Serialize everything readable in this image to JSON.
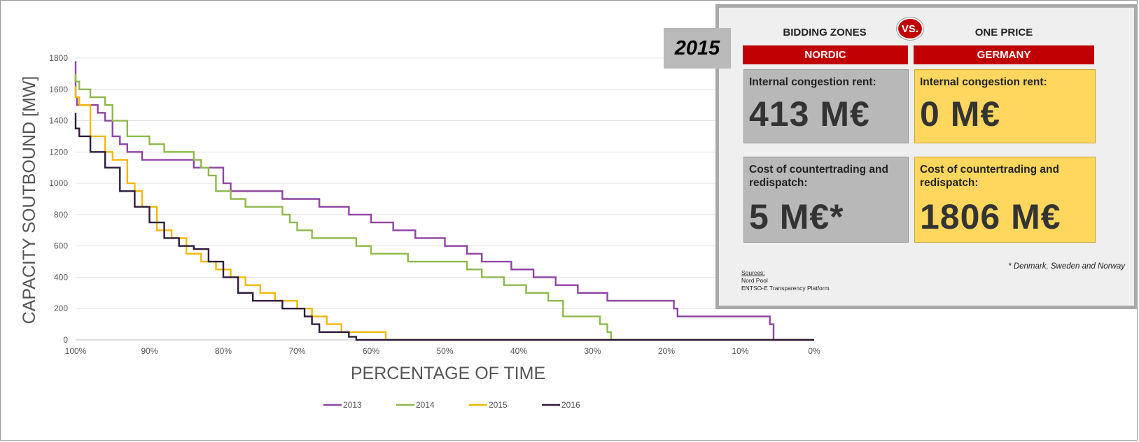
{
  "chart_data": {
    "type": "line",
    "title": "",
    "xlabel": "PERCENTAGE OF TIME",
    "ylabel": "CAPACITY SOUTBOUND [MW]",
    "xlim": [
      100,
      0
    ],
    "ylim": [
      0,
      1800
    ],
    "x_ticks": [
      "100%",
      "90%",
      "80%",
      "70%",
      "60%",
      "50%",
      "40%",
      "30%",
      "20%",
      "10%",
      "0%"
    ],
    "y_ticks": [
      "0",
      "200",
      "400",
      "600",
      "800",
      "1000",
      "1200",
      "1400",
      "1600",
      "1800"
    ],
    "legend_position": "bottom",
    "grid": "horizontal",
    "series": [
      {
        "name": "2013",
        "color": "#8e44a0",
        "x": [
          100,
          100,
          99.8,
          97,
          96,
          95,
          94,
          93,
          91,
          84,
          80,
          79,
          77,
          72,
          70,
          67,
          63,
          60,
          57,
          54,
          50,
          47,
          45,
          41,
          38,
          35,
          32,
          28,
          25,
          19,
          18.5,
          6,
          5.5,
          5.5,
          0
        ],
        "y": [
          1780,
          1550,
          1500,
          1450,
          1400,
          1300,
          1250,
          1200,
          1150,
          1100,
          1000,
          950,
          950,
          900,
          900,
          850,
          800,
          750,
          700,
          650,
          600,
          550,
          500,
          450,
          400,
          350,
          300,
          250,
          250,
          200,
          150,
          100,
          100,
          0,
          0
        ]
      },
      {
        "name": "2014",
        "color": "#8fb84d",
        "x": [
          100,
          100,
          99.5,
          98,
          96,
          95,
          93,
          90,
          88,
          84,
          83,
          82,
          81,
          79,
          77,
          73,
          72,
          71,
          70,
          68,
          65,
          62,
          60,
          55,
          52,
          47,
          45,
          42,
          39,
          36,
          34,
          30,
          29,
          28,
          27.5,
          0
        ],
        "y": [
          1700,
          1650,
          1600,
          1550,
          1500,
          1400,
          1300,
          1250,
          1200,
          1150,
          1100,
          1050,
          950,
          900,
          850,
          850,
          800,
          750,
          700,
          650,
          650,
          600,
          550,
          500,
          500,
          450,
          400,
          350,
          300,
          250,
          150,
          150,
          100,
          50,
          0,
          0
        ]
      },
      {
        "name": "2015",
        "color": "#f2b705",
        "x": [
          100,
          100,
          99.5,
          98,
          96,
          95,
          93,
          92,
          91,
          89,
          87,
          85,
          83,
          81,
          79,
          77,
          75,
          73,
          70,
          68,
          66,
          64,
          62,
          58,
          58,
          0
        ],
        "y": [
          1620,
          1550,
          1500,
          1300,
          1200,
          1150,
          1000,
          950,
          850,
          700,
          650,
          550,
          500,
          450,
          400,
          350,
          300,
          250,
          200,
          150,
          100,
          50,
          50,
          50,
          0,
          0
        ]
      },
      {
        "name": "2016",
        "color": "#2e1b3c",
        "x": [
          100,
          100,
          99.5,
          98,
          96,
          94,
          92,
          90,
          88,
          86,
          84,
          82,
          80,
          78,
          76,
          74,
          72,
          70,
          69,
          68,
          67,
          66,
          64,
          63,
          62,
          61,
          0
        ],
        "y": [
          1450,
          1350,
          1300,
          1200,
          1100,
          950,
          850,
          750,
          650,
          600,
          580,
          500,
          400,
          300,
          250,
          250,
          200,
          200,
          150,
          100,
          50,
          50,
          50,
          20,
          0,
          0,
          0
        ]
      }
    ]
  },
  "panel": {
    "year": "2015",
    "vs": "VS.",
    "left_head": "BIDDING ZONES",
    "right_head": "ONE PRICE",
    "left_region": "NORDIC",
    "right_region": "GERMANY",
    "left_rent_label": "Internal congestion rent:",
    "left_rent_value": "413 M€",
    "right_rent_label": "Internal congestion rent:",
    "right_rent_value": "0 M€",
    "left_cost_label": "Cost of countertrading and redispatch:",
    "left_cost_value": "5 M€*",
    "right_cost_label": "Cost of countertrading and redispatch:",
    "right_cost_value": "1806 M€",
    "footnote": "* Denmark, Sweden and Norway",
    "sources_title": "Sources:",
    "sources": [
      "Nord Pool",
      "ENTSO-E Transparency Platform"
    ]
  }
}
